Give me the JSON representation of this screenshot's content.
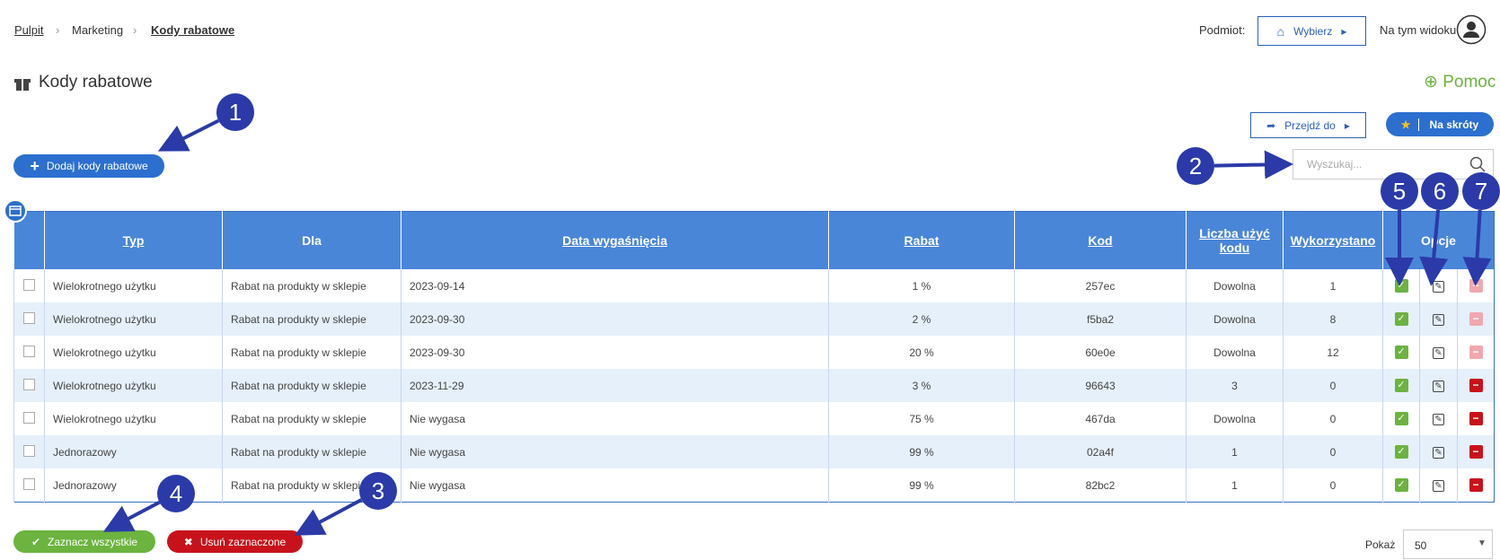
{
  "breadcrumb": [
    "Pulpit",
    "Marketing",
    "Kody rabatowe"
  ],
  "subject": {
    "label": "Podmiot:",
    "button": "Wybierz"
  },
  "view_label": "Na tym widoku",
  "header": {
    "title": "Kody rabatowe",
    "help": "Pomoc"
  },
  "toolbar": {
    "goto": "Przejdź do",
    "shortcuts": "Na skróty",
    "add": "Dodaj kody rabatowe",
    "search_placeholder": "Wyszukaj..."
  },
  "table": {
    "columns": [
      {
        "label": "Typ",
        "sortable": true
      },
      {
        "label": "Dla",
        "sortable": false
      },
      {
        "label": "Data wygaśnięcia",
        "sortable": true
      },
      {
        "label": "Rabat",
        "sortable": true
      },
      {
        "label": "Kod",
        "sortable": true
      },
      {
        "label": "Liczba użyć kodu",
        "sortable": true
      },
      {
        "label": "Wykorzystano",
        "sortable": true
      },
      {
        "label": "Opcje",
        "sortable": false
      }
    ],
    "rows": [
      [
        "Wielokrotnego użytku",
        "Rabat na produkty w sklepie",
        "2023-09-14",
        "1 %",
        "257ec",
        "Dowolna",
        "1"
      ],
      [
        "Wielokrotnego użytku",
        "Rabat na produkty w sklepie",
        "2023-09-30",
        "2 %",
        "f5ba2",
        "Dowolna",
        "8"
      ],
      [
        "Wielokrotnego użytku",
        "Rabat na produkty w sklepie",
        "2023-09-30",
        "20 %",
        "60e0e",
        "Dowolna",
        "12"
      ],
      [
        "Wielokrotnego użytku",
        "Rabat na produkty w sklepie",
        "2023-11-29",
        "3 %",
        "96643",
        "3",
        "0"
      ],
      [
        "Wielokrotnego użytku",
        "Rabat na produkty w sklepie",
        "Nie wygasa",
        "75 %",
        "467da",
        "Dowolna",
        "0"
      ],
      [
        "Jednorazowy",
        "Rabat na produkty w sklepie",
        "Nie wygasa",
        "99 %",
        "02a4f",
        "1",
        "0"
      ],
      [
        "Jednorazowy",
        "Rabat na produkty w sklepie",
        "Nie wygasa",
        "99 %",
        "82bc2",
        "1",
        "0"
      ]
    ],
    "delete_enabled": [
      false,
      false,
      false,
      true,
      true,
      true,
      true
    ]
  },
  "footer": {
    "select_all": "Zaznacz wszystkie",
    "delete_selected": "Usuń zaznaczone",
    "page_size_label": "Pokaż",
    "page_size": "50"
  },
  "callouts": [
    "1",
    "2",
    "3",
    "4",
    "5",
    "6",
    "7"
  ]
}
